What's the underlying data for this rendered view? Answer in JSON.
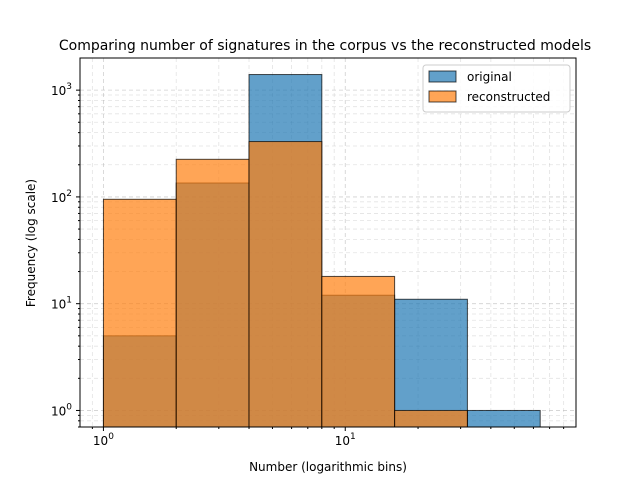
{
  "chart_data": {
    "type": "bar",
    "title": "Comparing number of signatures in the corpus vs the reconstructed models",
    "xlabel": "Number (logarithmic bins)",
    "ylabel": "Frequency (log scale)",
    "x_scale": "log",
    "y_scale": "log",
    "xlim": [
      0.8,
      90
    ],
    "ylim": [
      0.7,
      2000
    ],
    "grid": true,
    "legend_position": "top-right",
    "bin_edges": [
      1,
      2,
      4,
      8,
      16,
      32,
      64
    ],
    "series": [
      {
        "name": "original",
        "color": "#1f77b4",
        "values": [
          5,
          135,
          1400,
          12,
          11,
          1
        ]
      },
      {
        "name": "reconstructed",
        "color": "#ff7f0e",
        "values": [
          95,
          225,
          330,
          18,
          1,
          0
        ]
      }
    ],
    "x_ticks": [
      {
        "value": 1,
        "base": "10",
        "exp": "0"
      },
      {
        "value": 10,
        "base": "10",
        "exp": "1"
      }
    ],
    "y_ticks": [
      {
        "value": 1,
        "base": "10",
        "exp": "0"
      },
      {
        "value": 10,
        "base": "10",
        "exp": "1"
      },
      {
        "value": 100,
        "base": "10",
        "exp": "2"
      },
      {
        "value": 1000,
        "base": "10",
        "exp": "3"
      }
    ]
  }
}
